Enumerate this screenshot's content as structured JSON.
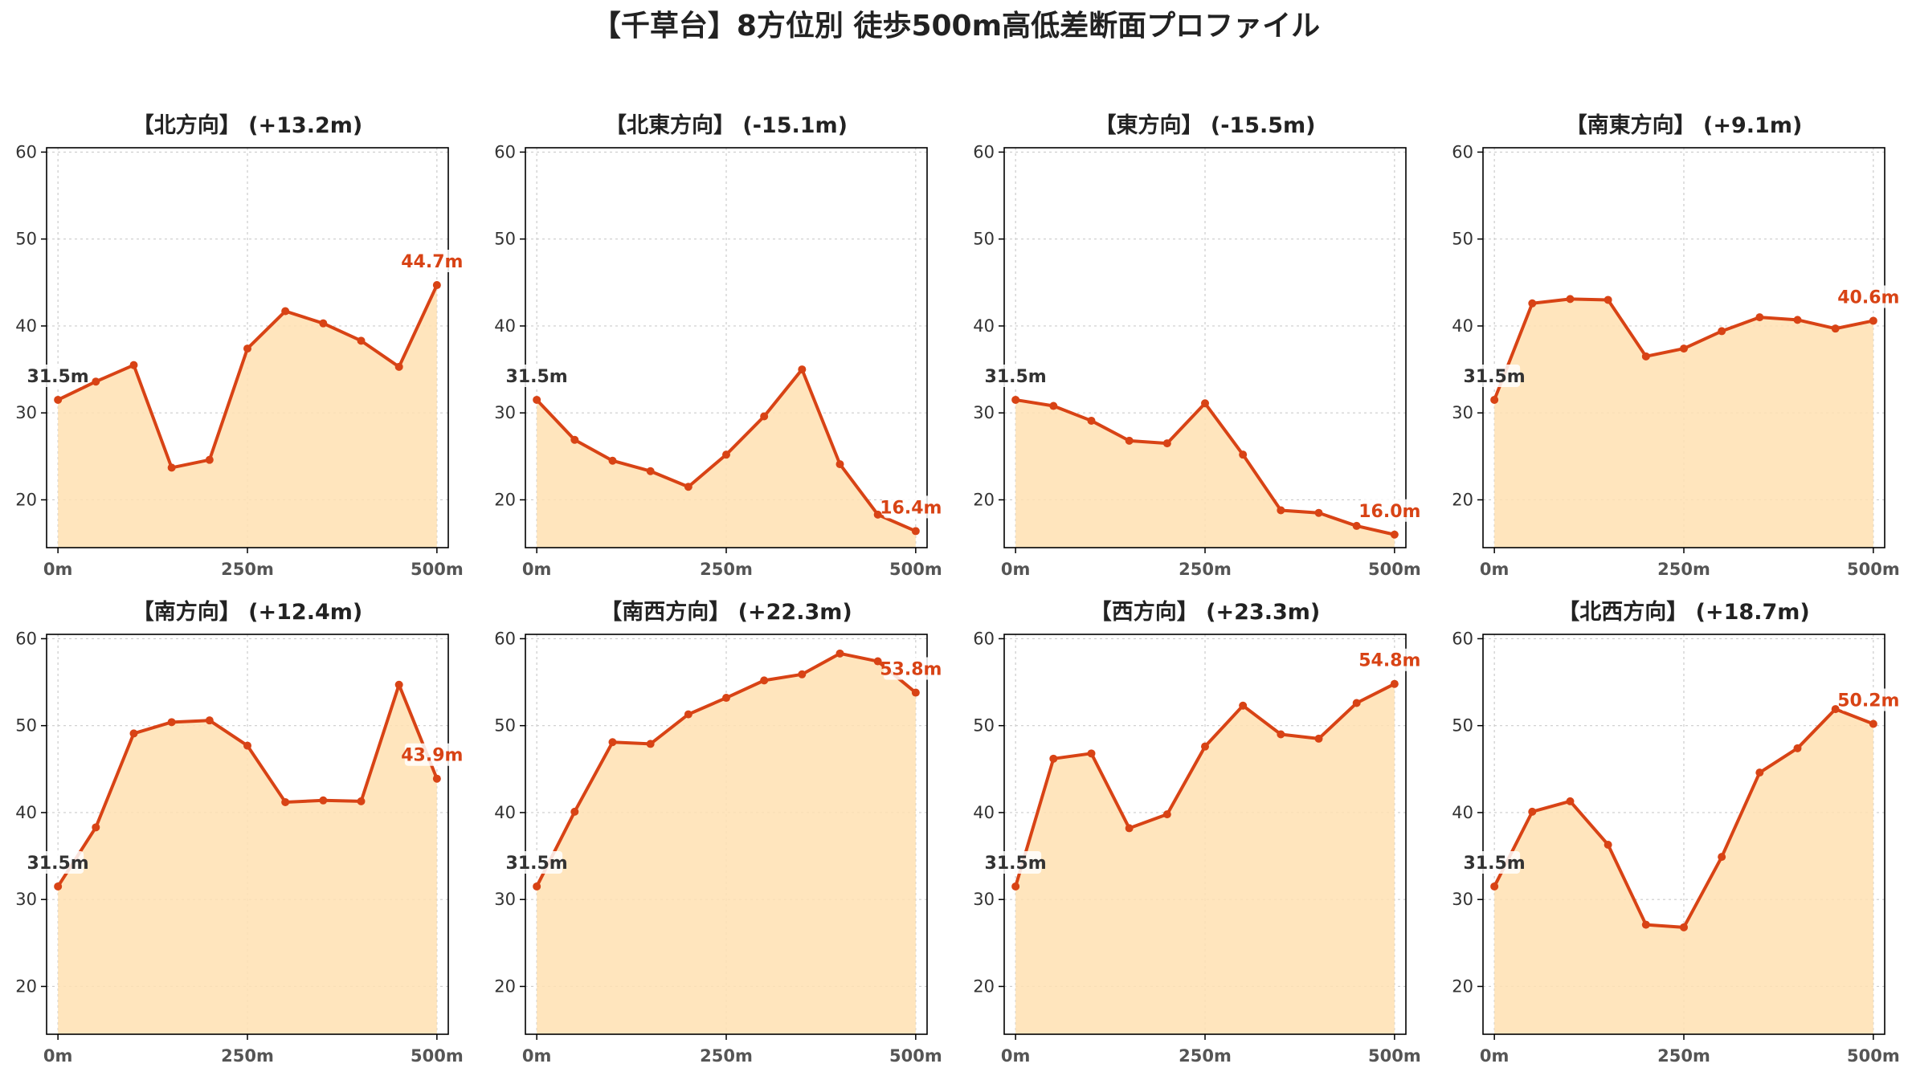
{
  "title": "【千草台】8方位別 徒歩500m高低差断面プロファイル",
  "colors": {
    "line": "#d84315",
    "fill": "#ffe0b2",
    "grid": "#cccccc",
    "axis": "#000000"
  },
  "chart_data": [
    {
      "type": "area",
      "title": "【北方向】 (+13.2m)",
      "x": [
        0,
        50,
        100,
        150,
        200,
        250,
        300,
        350,
        400,
        450,
        500
      ],
      "y": [
        31.5,
        33.6,
        35.5,
        23.7,
        24.6,
        37.4,
        41.7,
        40.3,
        38.3,
        35.3,
        44.7
      ],
      "x_ticks": [
        "0m",
        "250m",
        "500m"
      ],
      "y_ticks": [
        20,
        30,
        40,
        50,
        60
      ],
      "ylim": [
        14.5,
        60.5
      ],
      "xlim": [
        -15,
        515
      ],
      "start_label": "31.5m",
      "end_label": "44.7m",
      "grid": true
    },
    {
      "type": "area",
      "title": "【北東方向】 (-15.1m)",
      "x": [
        0,
        50,
        100,
        150,
        200,
        250,
        300,
        350,
        400,
        450,
        500
      ],
      "y": [
        31.5,
        26.9,
        24.5,
        23.3,
        21.5,
        25.2,
        29.6,
        35.0,
        24.1,
        18.3,
        16.4
      ],
      "x_ticks": [
        "0m",
        "250m",
        "500m"
      ],
      "y_ticks": [
        20,
        30,
        40,
        50,
        60
      ],
      "ylim": [
        14.5,
        60.5
      ],
      "xlim": [
        -15,
        515
      ],
      "start_label": "31.5m",
      "end_label": "16.4m",
      "grid": true
    },
    {
      "type": "area",
      "title": "【東方向】 (-15.5m)",
      "x": [
        0,
        50,
        100,
        150,
        200,
        250,
        300,
        350,
        400,
        450,
        500
      ],
      "y": [
        31.5,
        30.8,
        29.1,
        26.8,
        26.5,
        31.1,
        25.2,
        18.8,
        18.5,
        17.0,
        16.0
      ],
      "x_ticks": [
        "0m",
        "250m",
        "500m"
      ],
      "y_ticks": [
        20,
        30,
        40,
        50,
        60
      ],
      "ylim": [
        14.5,
        60.5
      ],
      "xlim": [
        -15,
        515
      ],
      "start_label": "31.5m",
      "end_label": "16.0m",
      "grid": true
    },
    {
      "type": "area",
      "title": "【南東方向】 (+9.1m)",
      "x": [
        0,
        50,
        100,
        150,
        200,
        250,
        300,
        350,
        400,
        450,
        500
      ],
      "y": [
        31.5,
        42.6,
        43.1,
        43.0,
        36.5,
        37.4,
        39.4,
        41.0,
        40.7,
        39.7,
        40.6
      ],
      "x_ticks": [
        "0m",
        "250m",
        "500m"
      ],
      "y_ticks": [
        20,
        30,
        40,
        50,
        60
      ],
      "ylim": [
        14.5,
        60.5
      ],
      "xlim": [
        -15,
        515
      ],
      "start_label": "31.5m",
      "end_label": "40.6m",
      "grid": true
    },
    {
      "type": "area",
      "title": "【南方向】 (+12.4m)",
      "x": [
        0,
        50,
        100,
        150,
        200,
        250,
        300,
        350,
        400,
        450,
        500
      ],
      "y": [
        31.5,
        38.3,
        49.1,
        50.4,
        50.6,
        47.7,
        41.2,
        41.4,
        41.3,
        54.7,
        43.9
      ],
      "x_ticks": [
        "0m",
        "250m",
        "500m"
      ],
      "y_ticks": [
        20,
        30,
        40,
        50,
        60
      ],
      "ylim": [
        14.5,
        60.5
      ],
      "xlim": [
        -15,
        515
      ],
      "start_label": "31.5m",
      "end_label": "43.9m",
      "grid": true
    },
    {
      "type": "area",
      "title": "【南西方向】 (+22.3m)",
      "x": [
        0,
        50,
        100,
        150,
        200,
        250,
        300,
        350,
        400,
        450,
        500
      ],
      "y": [
        31.5,
        40.1,
        48.1,
        47.9,
        51.3,
        53.2,
        55.2,
        55.9,
        58.3,
        57.4,
        53.8
      ],
      "x_ticks": [
        "0m",
        "250m",
        "500m"
      ],
      "y_ticks": [
        20,
        30,
        40,
        50,
        60
      ],
      "ylim": [
        14.5,
        60.5
      ],
      "xlim": [
        -15,
        515
      ],
      "start_label": "31.5m",
      "end_label": "53.8m",
      "grid": true
    },
    {
      "type": "area",
      "title": "【西方向】 (+23.3m)",
      "x": [
        0,
        50,
        100,
        150,
        200,
        250,
        300,
        350,
        400,
        450,
        500
      ],
      "y": [
        31.5,
        46.2,
        46.8,
        38.2,
        39.8,
        47.6,
        52.3,
        49.0,
        48.5,
        52.6,
        54.8
      ],
      "x_ticks": [
        "0m",
        "250m",
        "500m"
      ],
      "y_ticks": [
        20,
        30,
        40,
        50,
        60
      ],
      "ylim": [
        14.5,
        60.5
      ],
      "xlim": [
        -15,
        515
      ],
      "start_label": "31.5m",
      "end_label": "54.8m",
      "grid": true
    },
    {
      "type": "area",
      "title": "【北西方向】 (+18.7m)",
      "x": [
        0,
        50,
        100,
        150,
        200,
        250,
        300,
        350,
        400,
        450,
        500
      ],
      "y": [
        31.5,
        40.1,
        41.3,
        36.3,
        27.1,
        26.8,
        34.9,
        44.6,
        47.4,
        51.9,
        50.2
      ],
      "x_ticks": [
        "0m",
        "250m",
        "500m"
      ],
      "y_ticks": [
        20,
        30,
        40,
        50,
        60
      ],
      "ylim": [
        14.5,
        60.5
      ],
      "xlim": [
        -15,
        515
      ],
      "start_label": "31.5m",
      "end_label": "50.2m",
      "grid": true
    }
  ]
}
